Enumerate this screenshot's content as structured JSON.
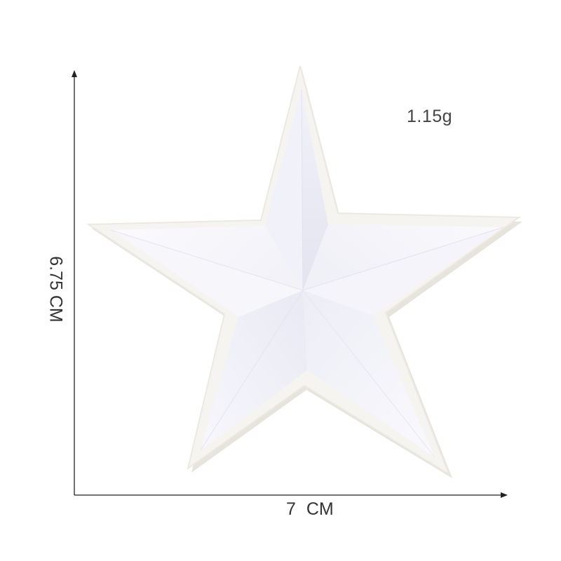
{
  "product": {
    "subject": "white embroidered star patch",
    "colors": {
      "background": "#ffffff",
      "patch_border": "#f4f3ef",
      "satin_light": "#f8f8fd",
      "satin_shade": "#e8e8f3",
      "axis_line": "#222222"
    }
  },
  "annotations": {
    "weight": "1.15g",
    "width": "7  CM",
    "height": "6.75 CM"
  }
}
